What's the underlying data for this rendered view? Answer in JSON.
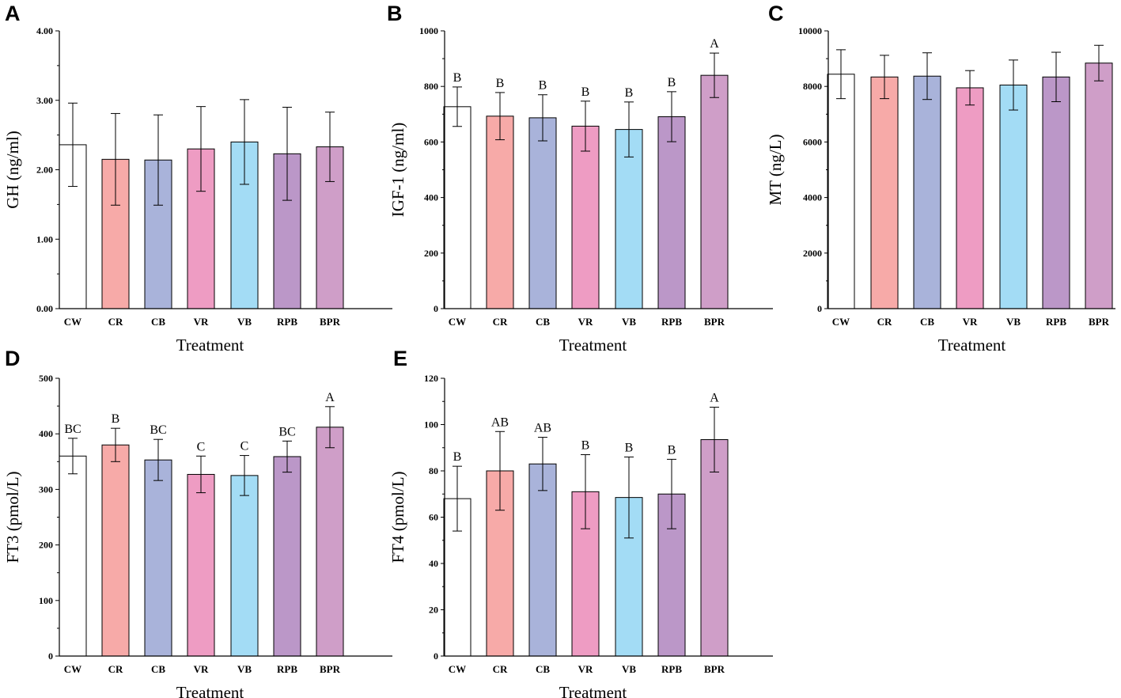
{
  "colors": {
    "CW": "#ffffff",
    "CR": "#f7aaa8",
    "CB": "#a9b3da",
    "VR": "#ee9cc3",
    "VB": "#a3dcf5",
    "RPB": "#bb97c8",
    "BPR": "#cf9ec8"
  },
  "chart_data": [
    {
      "panel": "A",
      "type": "bar",
      "xlabel": "Treatment",
      "ylabel": "GH (ng/ml)",
      "ylim": [
        0,
        4
      ],
      "yticks": [
        0,
        1,
        2,
        3,
        4
      ],
      "ytick_labels": [
        "0.00",
        "1.00",
        "2.00",
        "3.00",
        "4.00"
      ],
      "categories": [
        "CW",
        "CR",
        "CB",
        "VR",
        "VB",
        "RPB",
        "BPR"
      ],
      "values": [
        2.36,
        2.15,
        2.14,
        2.3,
        2.4,
        2.23,
        2.33
      ],
      "errors": [
        0.6,
        0.66,
        0.65,
        0.61,
        0.61,
        0.67,
        0.5
      ],
      "sig_labels": [
        "",
        "",
        "",
        "",
        "",
        "",
        ""
      ]
    },
    {
      "panel": "B",
      "type": "bar",
      "xlabel": "Treatment",
      "ylabel": "IGF-1 (ng/ml)",
      "ylim": [
        0,
        1000
      ],
      "yticks": [
        0,
        200,
        400,
        600,
        800,
        1000
      ],
      "ytick_labels": [
        "0",
        "200",
        "400",
        "600",
        "800",
        "1000"
      ],
      "categories": [
        "CW",
        "CR",
        "CB",
        "VR",
        "VB",
        "RPB",
        "BPR"
      ],
      "values": [
        727,
        693,
        687,
        657,
        645,
        691,
        840
      ],
      "errors": [
        71,
        85,
        83,
        90,
        99,
        90,
        80
      ],
      "sig_labels": [
        "B",
        "B",
        "B",
        "B",
        "B",
        "B",
        "A"
      ]
    },
    {
      "panel": "C",
      "type": "bar",
      "xlabel": "Treatment",
      "ylabel": "MT (ng/L)",
      "ylim": [
        0,
        10000
      ],
      "yticks": [
        0,
        2000,
        4000,
        6000,
        8000,
        10000
      ],
      "ytick_labels": [
        "0",
        "2000",
        "4000",
        "6000",
        "8000",
        "10000"
      ],
      "categories": [
        "CW",
        "CR",
        "CB",
        "VR",
        "VB",
        "RPB",
        "BPR"
      ],
      "values": [
        8440,
        8340,
        8370,
        7950,
        8050,
        8340,
        8840
      ],
      "errors": [
        880,
        780,
        840,
        620,
        900,
        890,
        640
      ],
      "sig_labels": [
        "",
        "",
        "",
        "",
        "",
        "",
        ""
      ]
    },
    {
      "panel": "D",
      "type": "bar",
      "xlabel": "Treatment",
      "ylabel": "FT3 (pmol/L)",
      "ylim": [
        0,
        500
      ],
      "yticks": [
        0,
        100,
        200,
        300,
        400,
        500
      ],
      "ytick_labels": [
        "0",
        "100",
        "200",
        "300",
        "400",
        "500"
      ],
      "categories": [
        "CW",
        "CR",
        "CB",
        "VR",
        "VB",
        "RPB",
        "BPR"
      ],
      "values": [
        360,
        380,
        353,
        327,
        325,
        359,
        412
      ],
      "errors": [
        32,
        30,
        37,
        33,
        36,
        28,
        37
      ],
      "sig_labels": [
        "BC",
        "B",
        "BC",
        "C",
        "C",
        "BC",
        "A"
      ]
    },
    {
      "panel": "E",
      "type": "bar",
      "xlabel": "Treatment",
      "ylabel": "FT4 (pmol/L)",
      "ylim": [
        0,
        120
      ],
      "yticks": [
        0,
        20,
        40,
        60,
        80,
        100,
        120
      ],
      "ytick_labels": [
        "0",
        "20",
        "40",
        "60",
        "80",
        "100",
        "120"
      ],
      "categories": [
        "CW",
        "CR",
        "CB",
        "VR",
        "VB",
        "RPB",
        "BPR"
      ],
      "values": [
        68,
        80,
        83,
        71,
        68.5,
        70,
        93.5
      ],
      "errors": [
        14,
        17,
        11.5,
        16,
        17.5,
        15,
        14
      ],
      "sig_labels": [
        "B",
        "AB",
        "AB",
        "B",
        "B",
        "B",
        "A"
      ]
    }
  ]
}
